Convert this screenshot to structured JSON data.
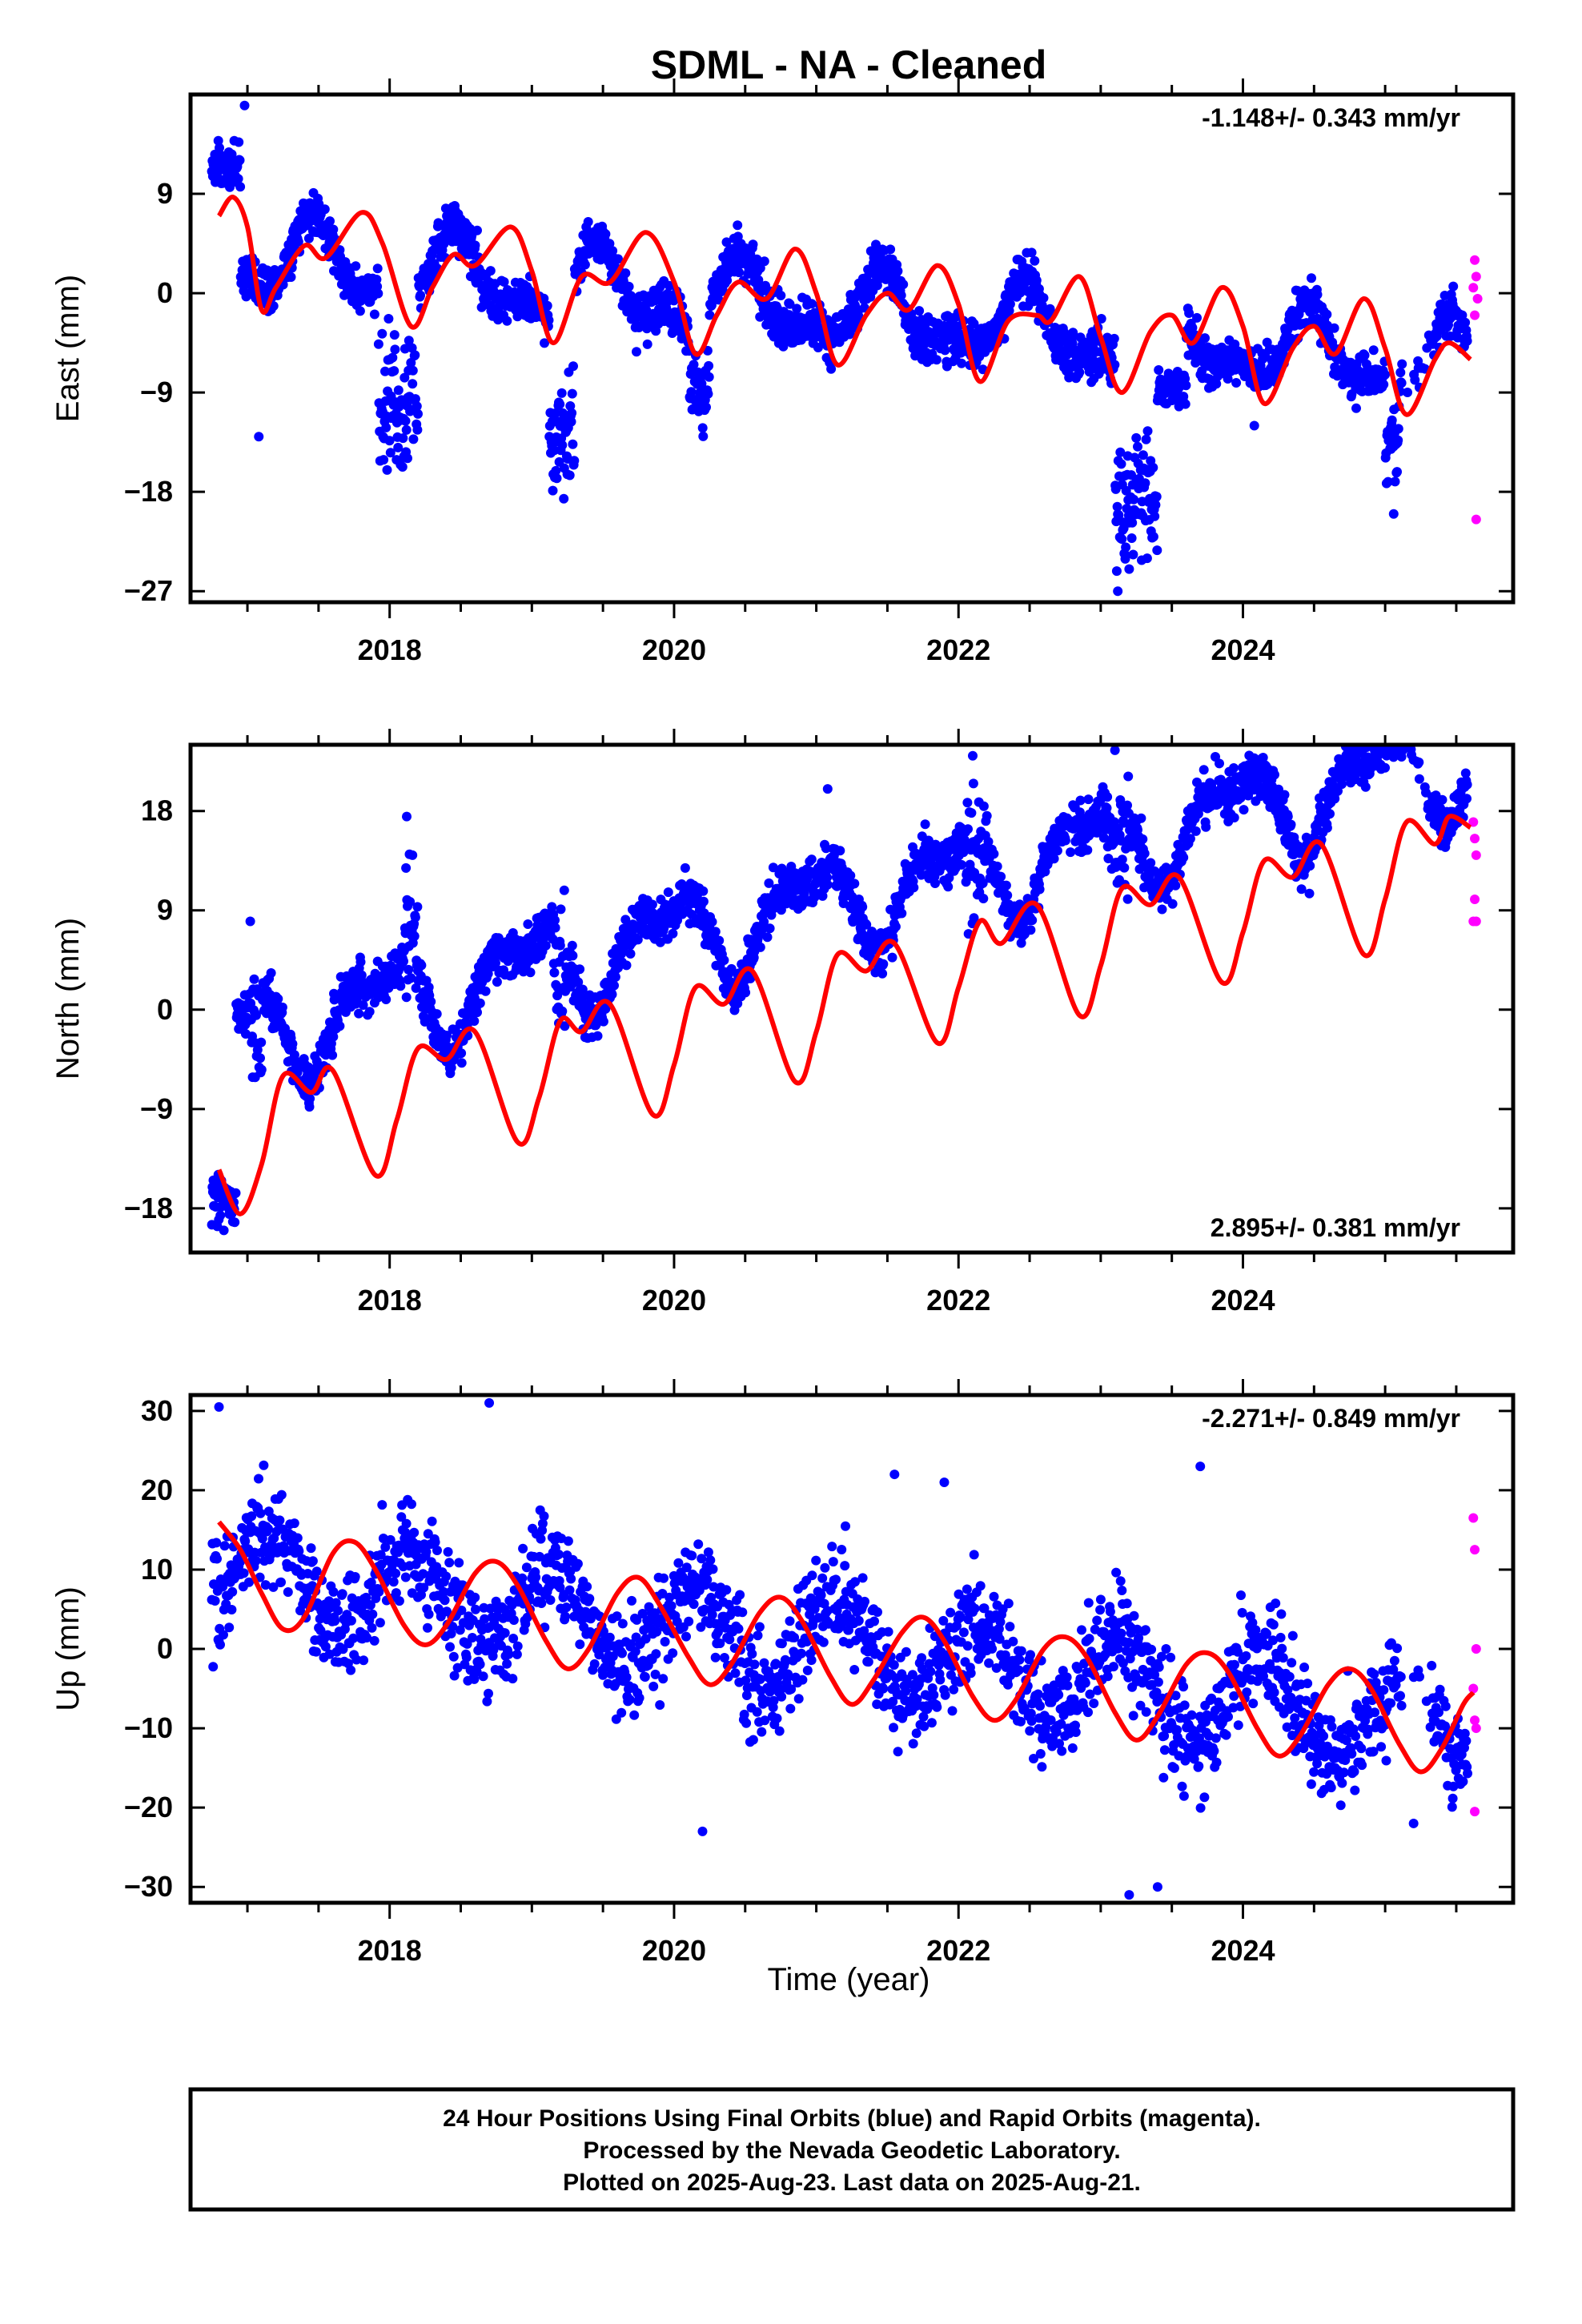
{
  "title": "SDML  - NA - Cleaned",
  "colors": {
    "final": "#0000ff",
    "rapid": "#ff00ff",
    "model": "#ff0000",
    "axis": "#000000"
  },
  "xaxis": {
    "label": "Time (year)",
    "range": [
      2016.6,
      2025.9
    ],
    "ticks": [
      2018,
      2020,
      2022,
      2024
    ]
  },
  "chart_data": [
    {
      "type": "scatter",
      "ylabel": "East (mm)",
      "rate": "-1.148+/- 0.343 mm/yr",
      "rate_position": "top-right",
      "ylim": [
        -28,
        18
      ],
      "yticks": [
        9,
        0,
        -9,
        -18,
        -27
      ],
      "trend": {
        "slope": -1.148,
        "intercept": 3.5
      },
      "seasonal": {
        "cos1": -3.0,
        "sin1": 0.6,
        "cos2": 1.3,
        "sin2": -0.8,
        "bias": 0.0
      },
      "segments": [
        {
          "t0": 2016.75,
          "t1": 2016.95,
          "mean": 11.5,
          "sd": 1.3
        },
        {
          "t0": 2017.92,
          "t1": 2018.2,
          "mean": -10,
          "sd": 4.5
        },
        {
          "t0": 2019.12,
          "t1": 2019.3,
          "mean": -12,
          "sd": 4.0
        },
        {
          "t0": 2020.1,
          "t1": 2020.25,
          "mean": -8,
          "sd": 3.0
        },
        {
          "t0": 2023.1,
          "t1": 2023.4,
          "mean": -19,
          "sd": 4.0
        },
        {
          "t0": 2023.4,
          "t1": 2023.6,
          "mean": -8.5,
          "sd": 1.2
        },
        {
          "t0": 2025.0,
          "t1": 2025.1,
          "mean": -14,
          "sd": 3.0
        }
      ],
      "outliers": [
        [
          2016.98,
          17
        ],
        [
          2017.08,
          -13
        ],
        [
          2023.12,
          -27
        ],
        [
          2023.2,
          -25
        ],
        [
          2024.08,
          -12
        ],
        [
          2025.06,
          -20
        ]
      ],
      "rapid": [
        [
          2025.63,
          3
        ],
        [
          2025.64,
          1.5
        ],
        [
          2025.62,
          0.5
        ],
        [
          2025.65,
          -0.5
        ],
        [
          2025.63,
          -2
        ],
        [
          2025.64,
          -20.5
        ]
      ],
      "model_points": [
        [
          2016.8,
          7.0
        ],
        [
          2016.9,
          8.7
        ],
        [
          2017.0,
          6.0
        ],
        [
          2017.1,
          -1.5
        ],
        [
          2017.2,
          0.5
        ],
        [
          2017.4,
          4.3
        ],
        [
          2017.55,
          3.2
        ],
        [
          2017.8,
          7.3
        ],
        [
          2017.95,
          4.5
        ],
        [
          2018.15,
          -3
        ],
        [
          2018.3,
          0.5
        ],
        [
          2018.45,
          3.5
        ],
        [
          2018.6,
          2.5
        ],
        [
          2018.85,
          6
        ],
        [
          2019.0,
          2
        ],
        [
          2019.15,
          -4.5
        ],
        [
          2019.35,
          1.5
        ],
        [
          2019.55,
          1.0
        ],
        [
          2019.8,
          5.5
        ],
        [
          2020.0,
          1
        ],
        [
          2020.15,
          -5.5
        ],
        [
          2020.3,
          -2
        ],
        [
          2020.45,
          1
        ],
        [
          2020.65,
          -0.5
        ],
        [
          2020.85,
          4
        ],
        [
          2021.0,
          0
        ],
        [
          2021.15,
          -6.5
        ],
        [
          2021.35,
          -2
        ],
        [
          2021.5,
          0
        ],
        [
          2021.65,
          -1.5
        ],
        [
          2021.85,
          2.5
        ],
        [
          2022.0,
          -1
        ],
        [
          2022.15,
          -8
        ],
        [
          2022.35,
          -2.5
        ],
        [
          2022.55,
          -2
        ],
        [
          2022.65,
          -2.5
        ],
        [
          2022.85,
          1.5
        ],
        [
          2023.0,
          -4
        ],
        [
          2023.15,
          -9
        ],
        [
          2023.35,
          -3.5
        ],
        [
          2023.5,
          -2
        ],
        [
          2023.65,
          -4.5
        ],
        [
          2023.85,
          0.5
        ],
        [
          2024.0,
          -3
        ],
        [
          2024.15,
          -10
        ],
        [
          2024.35,
          -5
        ],
        [
          2024.5,
          -3
        ],
        [
          2024.65,
          -5.5
        ],
        [
          2024.85,
          -0.5
        ],
        [
          2025.0,
          -5
        ],
        [
          2025.15,
          -11
        ],
        [
          2025.35,
          -6
        ],
        [
          2025.45,
          -4.5
        ],
        [
          2025.6,
          -6
        ]
      ]
    },
    {
      "type": "scatter",
      "ylabel": "North (mm)",
      "rate": "2.895+/- 0.381 mm/yr",
      "rate_position": "bottom-right",
      "ylim": [
        -22,
        24
      ],
      "yticks": [
        18,
        9,
        0,
        -9,
        -18
      ],
      "trend": {
        "slope": 2.895,
        "intercept": -3.0
      },
      "seasonal": {
        "cos1": 3.5,
        "sin1": -1.2,
        "cos2": -1.0,
        "sin2": 1.5,
        "bias": 0.0
      },
      "segments": [
        {
          "t0": 2016.75,
          "t1": 2016.92,
          "mean": -17.5,
          "sd": 1.5
        },
        {
          "t0": 2017.02,
          "t1": 2017.12,
          "mean": -2,
          "sd": 3.5
        },
        {
          "t0": 2018.1,
          "t1": 2018.2,
          "mean": 8,
          "sd": 5.0
        },
        {
          "t0": 2019.15,
          "t1": 2019.25,
          "mean": 3,
          "sd": 4.0
        },
        {
          "t0": 2022.05,
          "t1": 2022.2,
          "mean": 14,
          "sd": 4.0
        },
        {
          "t0": 2023.05,
          "t1": 2023.2,
          "mean": 16,
          "sd": 3.5
        }
      ],
      "outliers": [
        [
          2017.02,
          8
        ],
        [
          2018.12,
          17.5
        ],
        [
          2021.08,
          20
        ],
        [
          2022.1,
          23
        ],
        [
          2023.1,
          23.5
        ],
        [
          2024.05,
          21.5
        ]
      ],
      "rapid": [
        [
          2025.62,
          17
        ],
        [
          2025.63,
          15.5
        ],
        [
          2025.64,
          14
        ],
        [
          2025.63,
          10
        ],
        [
          2025.62,
          8
        ],
        [
          2025.64,
          8
        ]
      ],
      "model_points": [
        [
          2016.8,
          -14.5
        ],
        [
          2016.95,
          -18.5
        ],
        [
          2017.1,
          -14
        ],
        [
          2017.25,
          -6
        ],
        [
          2017.45,
          -7.5
        ],
        [
          2017.6,
          -5.5
        ],
        [
          2017.9,
          -15
        ],
        [
          2018.05,
          -10
        ],
        [
          2018.2,
          -3.5
        ],
        [
          2018.4,
          -4.5
        ],
        [
          2018.6,
          -2
        ],
        [
          2018.9,
          -12
        ],
        [
          2019.05,
          -8
        ],
        [
          2019.2,
          -1
        ],
        [
          2019.35,
          -2
        ],
        [
          2019.55,
          0.5
        ],
        [
          2019.85,
          -9.5
        ],
        [
          2020.0,
          -5
        ],
        [
          2020.15,
          2
        ],
        [
          2020.35,
          0.5
        ],
        [
          2020.55,
          3.5
        ],
        [
          2020.85,
          -6.5
        ],
        [
          2021.0,
          -2
        ],
        [
          2021.15,
          5
        ],
        [
          2021.35,
          3.5
        ],
        [
          2021.55,
          6
        ],
        [
          2021.85,
          -3
        ],
        [
          2022.0,
          2
        ],
        [
          2022.15,
          8
        ],
        [
          2022.3,
          6
        ],
        [
          2022.55,
          9.5
        ],
        [
          2022.85,
          -0.5
        ],
        [
          2023.0,
          4
        ],
        [
          2023.15,
          11
        ],
        [
          2023.35,
          9.5
        ],
        [
          2023.55,
          12
        ],
        [
          2023.85,
          2.5
        ],
        [
          2024.0,
          7
        ],
        [
          2024.15,
          13.5
        ],
        [
          2024.35,
          12
        ],
        [
          2024.55,
          15
        ],
        [
          2024.85,
          5
        ],
        [
          2025.0,
          10
        ],
        [
          2025.15,
          17
        ],
        [
          2025.35,
          15
        ],
        [
          2025.45,
          17.5
        ],
        [
          2025.6,
          16.5
        ]
      ]
    },
    {
      "type": "scatter",
      "ylabel": "Up (mm)",
      "rate": "-2.271+/- 0.849 mm/yr",
      "rate_position": "top-right",
      "ylim": [
        -32,
        32
      ],
      "yticks": [
        30,
        20,
        10,
        0,
        -10,
        -20,
        -30
      ],
      "trend": {
        "slope": -2.271,
        "intercept": 10.0
      },
      "seasonal": {
        "cos1": 3.5,
        "sin1": 4.5,
        "cos2": 0.0,
        "sin2": 0.0,
        "bias": 0.0
      },
      "segments": [],
      "outliers": [
        [
          2016.8,
          30.5
        ],
        [
          2018.7,
          31
        ],
        [
          2020.2,
          -23
        ],
        [
          2023.2,
          -31
        ],
        [
          2023.4,
          -30
        ],
        [
          2023.7,
          23
        ],
        [
          2021.55,
          22
        ],
        [
          2021.9,
          21
        ],
        [
          2025.2,
          -22
        ]
      ],
      "rapid": [
        [
          2025.62,
          16.5
        ],
        [
          2025.63,
          12.5
        ],
        [
          2025.64,
          0
        ],
        [
          2025.62,
          -5
        ],
        [
          2025.63,
          -9
        ],
        [
          2025.64,
          -10
        ],
        [
          2025.63,
          -20.5
        ]
      ],
      "model_points": [
        [
          2016.8,
          16
        ],
        [
          2016.95,
          12.5
        ],
        [
          2017.1,
          7
        ],
        [
          2017.25,
          2.5
        ],
        [
          2017.4,
          4
        ],
        [
          2017.6,
          12
        ],
        [
          2017.75,
          13.5
        ],
        [
          2017.9,
          10
        ],
        [
          2018.1,
          3
        ],
        [
          2018.25,
          0.5
        ],
        [
          2018.4,
          3
        ],
        [
          2018.6,
          9.5
        ],
        [
          2018.75,
          11
        ],
        [
          2018.9,
          8
        ],
        [
          2019.1,
          1
        ],
        [
          2019.25,
          -2.5
        ],
        [
          2019.4,
          0
        ],
        [
          2019.6,
          7
        ],
        [
          2019.75,
          9
        ],
        [
          2019.9,
          5.5
        ],
        [
          2020.1,
          -1
        ],
        [
          2020.25,
          -4.5
        ],
        [
          2020.4,
          -2
        ],
        [
          2020.6,
          4.5
        ],
        [
          2020.75,
          6.5
        ],
        [
          2020.9,
          3.5
        ],
        [
          2021.1,
          -3.5
        ],
        [
          2021.25,
          -7
        ],
        [
          2021.4,
          -4
        ],
        [
          2021.6,
          2
        ],
        [
          2021.75,
          4
        ],
        [
          2021.9,
          1
        ],
        [
          2022.1,
          -6
        ],
        [
          2022.25,
          -9
        ],
        [
          2022.4,
          -6.5
        ],
        [
          2022.6,
          0
        ],
        [
          2022.75,
          1.5
        ],
        [
          2022.9,
          -1
        ],
        [
          2023.1,
          -8
        ],
        [
          2023.25,
          -11.5
        ],
        [
          2023.4,
          -8.5
        ],
        [
          2023.6,
          -2
        ],
        [
          2023.75,
          -0.5
        ],
        [
          2023.9,
          -3
        ],
        [
          2024.1,
          -10
        ],
        [
          2024.25,
          -13.5
        ],
        [
          2024.4,
          -11
        ],
        [
          2024.6,
          -4.5
        ],
        [
          2024.75,
          -2.5
        ],
        [
          2024.9,
          -5
        ],
        [
          2025.1,
          -12
        ],
        [
          2025.25,
          -15.5
        ],
        [
          2025.4,
          -12.5
        ],
        [
          2025.55,
          -7
        ],
        [
          2025.62,
          -5.5
        ]
      ]
    }
  ],
  "footer": {
    "line1": "24 Hour Positions Using Final Orbits (blue) and Rapid Orbits (magenta).",
    "line2": "Processed by the Nevada Geodetic Laboratory.",
    "line3": "Plotted on 2025-Aug-23. Last data on 2025-Aug-21."
  }
}
